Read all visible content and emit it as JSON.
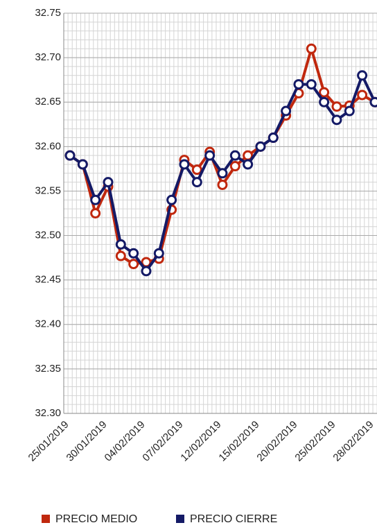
{
  "chart_data": {
    "type": "line",
    "categories": [
      "25/01/2019",
      null,
      null,
      "30/01/2019",
      null,
      null,
      "04/02/2019",
      null,
      null,
      "07/02/2019",
      null,
      null,
      "12/02/2019",
      null,
      null,
      "15/02/2019",
      null,
      null,
      "20/02/2019",
      null,
      null,
      "25/02/2019",
      null,
      null,
      "28/02/2019"
    ],
    "series": [
      {
        "name": "PRECIO MEDIO",
        "color": "#c0280e",
        "values": [
          32.59,
          32.58,
          32.525,
          32.555,
          32.477,
          32.468,
          32.47,
          32.474,
          32.529,
          32.585,
          32.574,
          32.594,
          32.557,
          32.578,
          32.59,
          32.6,
          32.61,
          32.635,
          32.66,
          32.71,
          32.661,
          32.645,
          32.646,
          32.658,
          32.65
        ]
      },
      {
        "name": "PRECIO CIERRE",
        "color": "#141a66",
        "values": [
          32.59,
          32.58,
          32.54,
          32.56,
          32.49,
          32.48,
          32.46,
          32.48,
          32.54,
          32.58,
          32.56,
          32.59,
          32.57,
          32.59,
          32.58,
          32.6,
          32.61,
          32.64,
          32.67,
          32.67,
          32.65,
          32.63,
          32.64,
          32.68,
          32.65
        ]
      }
    ],
    "ylim": [
      32.3,
      32.75
    ],
    "yticks": [
      {
        "value": 32.3,
        "label": "32.30"
      },
      32.35,
      {
        "value": 32.4,
        "label": "32.40"
      },
      32.45,
      {
        "value": 32.5,
        "label": "32.50"
      },
      32.55,
      {
        "value": 32.6,
        "label": "32.60"
      },
      32.65,
      {
        "value": 32.7,
        "label": "32.70"
      },
      32.75
    ],
    "grid": true,
    "legend": "bottom"
  }
}
